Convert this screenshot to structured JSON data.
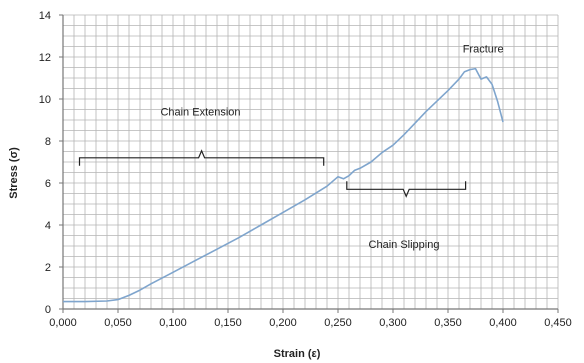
{
  "chart_data": {
    "type": "line",
    "title": "",
    "xlabel": "Strain (ε)",
    "ylabel": "Stress (σ)",
    "xlim": [
      0,
      0.45
    ],
    "ylim": [
      0,
      14
    ],
    "x_minor_step": 0.01,
    "y_minor_step": 0.5,
    "grid": true,
    "legend": "none",
    "colors": {
      "line": "#7fa5cd",
      "grid": "#b4b4b4",
      "axis": "#777777",
      "bracket": "#222222"
    },
    "x_ticks": [
      {
        "value": 0,
        "label": "0,000"
      },
      {
        "value": 0.05,
        "label": "0,050"
      },
      {
        "value": 0.1,
        "label": "0,100"
      },
      {
        "value": 0.15,
        "label": "0,150"
      },
      {
        "value": 0.2,
        "label": "0,200"
      },
      {
        "value": 0.25,
        "label": "0,250"
      },
      {
        "value": 0.3,
        "label": "0,300"
      },
      {
        "value": 0.35,
        "label": "0,350"
      },
      {
        "value": 0.4,
        "label": "0,400"
      },
      {
        "value": 0.45,
        "label": "0,450"
      }
    ],
    "y_ticks": [
      {
        "value": 0,
        "label": "0"
      },
      {
        "value": 2,
        "label": "2"
      },
      {
        "value": 4,
        "label": "4"
      },
      {
        "value": 6,
        "label": "6"
      },
      {
        "value": 8,
        "label": "8"
      },
      {
        "value": 10,
        "label": "10"
      },
      {
        "value": 12,
        "label": "12"
      },
      {
        "value": 14,
        "label": "14"
      }
    ],
    "series": [
      {
        "x": [
          0,
          0.02,
          0.04,
          0.05,
          0.06,
          0.07,
          0.08,
          0.1,
          0.12,
          0.14,
          0.16,
          0.18,
          0.2,
          0.22,
          0.24,
          0.25,
          0.255,
          0.26,
          0.265,
          0.27,
          0.28,
          0.29,
          0.3,
          0.31,
          0.32,
          0.33,
          0.34,
          0.35,
          0.36,
          0.365,
          0.37,
          0.375,
          0.38,
          0.385,
          0.39,
          0.395,
          0.4
        ],
        "y": [
          0.35,
          0.35,
          0.38,
          0.45,
          0.65,
          0.9,
          1.2,
          1.75,
          2.3,
          2.85,
          3.4,
          4.0,
          4.6,
          5.2,
          5.85,
          6.3,
          6.2,
          6.35,
          6.6,
          6.7,
          7.0,
          7.45,
          7.8,
          8.3,
          8.85,
          9.4,
          9.9,
          10.4,
          10.95,
          11.3,
          11.4,
          11.45,
          10.95,
          11.05,
          10.7,
          9.9,
          8.9
        ]
      }
    ],
    "annotations": [
      {
        "text": "Fracture",
        "x": 0.382,
        "y": 12.4
      },
      {
        "text": "Chain Extension",
        "x": 0.125,
        "y": 9.4
      },
      {
        "text": "Chain Slipping",
        "x": 0.31,
        "y": 3.1
      }
    ],
    "brackets": [
      {
        "name": "chain-extension-bracket",
        "x_start": 0.015,
        "x_end": 0.237,
        "y": 7.2,
        "direction": "up"
      },
      {
        "name": "chain-slipping-bracket",
        "x_start": 0.258,
        "x_end": 0.366,
        "y": 5.7,
        "direction": "down"
      }
    ]
  }
}
